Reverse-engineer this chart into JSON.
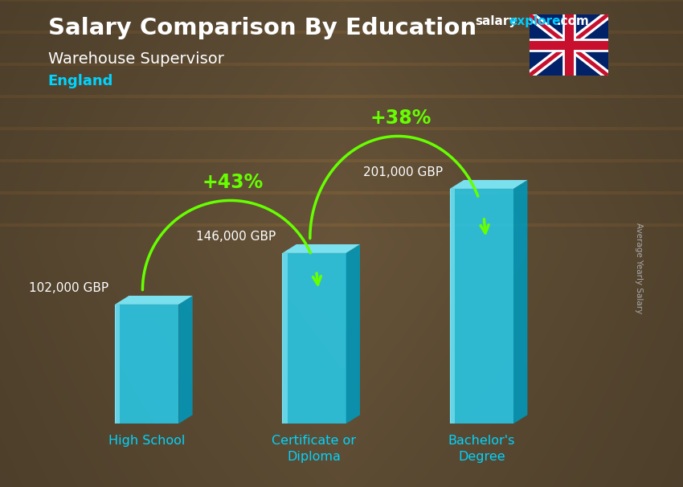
{
  "title_main": "Salary Comparison By Education",
  "title_sub": "Warehouse Supervisor",
  "title_country": "England",
  "watermark_salary": "salary",
  "watermark_explorer": "explorer",
  "watermark_com": ".com",
  "ylabel": "Average Yearly Salary",
  "categories": [
    "High School",
    "Certificate or\nDiploma",
    "Bachelor's\nDegree"
  ],
  "values": [
    102000,
    146000,
    201000
  ],
  "value_labels": [
    "102,000 GBP",
    "146,000 GBP",
    "201,000 GBP"
  ],
  "pct_labels": [
    "+43%",
    "+38%"
  ],
  "bar_face_color": "#29c9e8",
  "bar_top_color": "#7eeeff",
  "bar_side_color": "#0099bb",
  "bar_edge_color": "#55ddff",
  "arrow_color": "#66ff00",
  "title_color": "#ffffff",
  "sub_color": "#ffffff",
  "country_color": "#00d4ff",
  "value_label_color": "#ffffff",
  "pct_color": "#aaff00",
  "bg_color_dark": "#1a1408",
  "bg_color_mid": "#3d2e15",
  "bg_color_light": "#5a4520",
  "ylim": [
    0,
    250000
  ],
  "bar_width": 0.38,
  "figsize": [
    8.5,
    6.06
  ],
  "dpi": 100
}
